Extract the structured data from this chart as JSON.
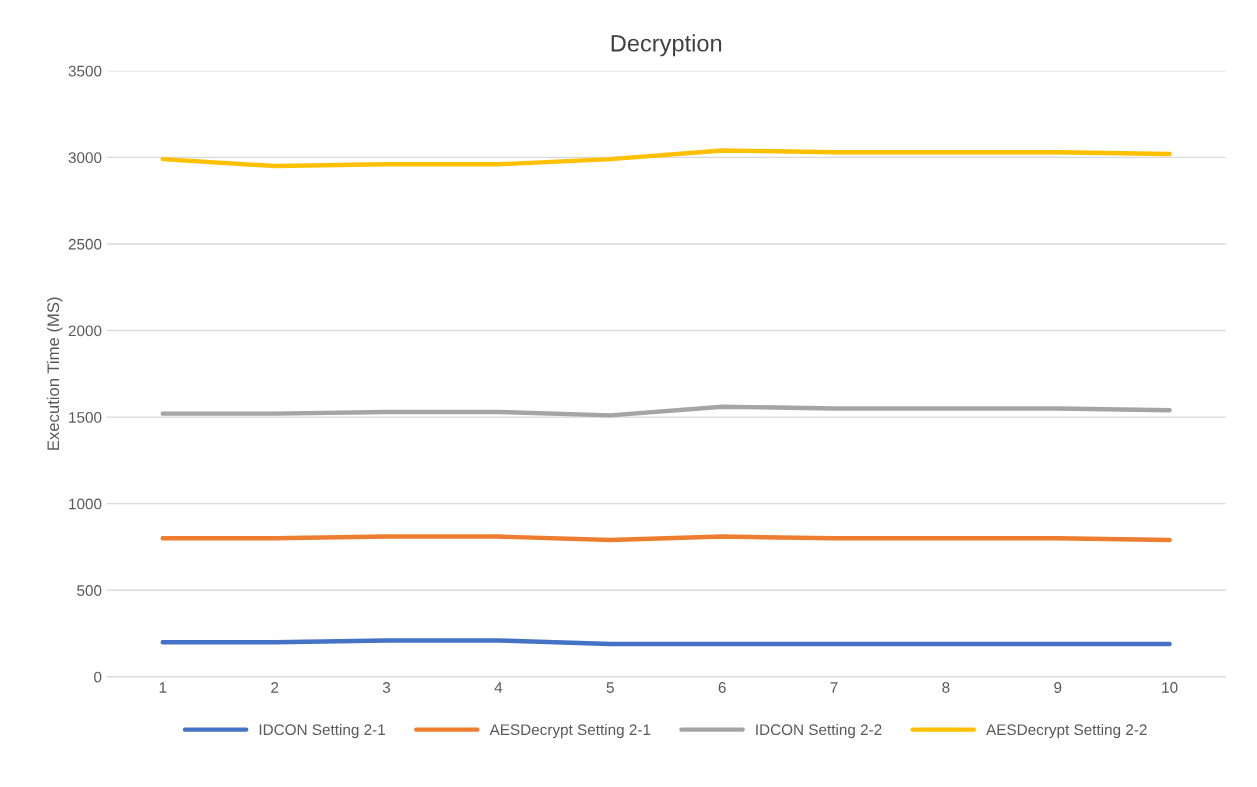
{
  "chart_data": {
    "type": "line",
    "title": "Decryption",
    "ylabel": "Execution Time (MS)",
    "categories": [
      "1",
      "2",
      "3",
      "4",
      "5",
      "6",
      "7",
      "8",
      "9",
      "10"
    ],
    "series": [
      {
        "name": "IDCON Setting 2-1",
        "color": "#4472c4",
        "values": [
          200,
          200,
          210,
          210,
          190,
          190,
          190,
          190,
          190,
          190
        ]
      },
      {
        "name": "AESDecrypt Setting 2-1",
        "color": "#ed7d31",
        "values": [
          800,
          800,
          810,
          810,
          790,
          810,
          800,
          800,
          800,
          790
        ]
      },
      {
        "name": "IDCON Setting 2-2",
        "color": "#a5a5a5",
        "values": [
          1520,
          1520,
          1530,
          1530,
          1510,
          1560,
          1550,
          1550,
          1550,
          1540
        ]
      },
      {
        "name": "AESDecrypt Setting 2-2",
        "color": "#ffc000",
        "values": [
          2990,
          2950,
          2960,
          2960,
          2990,
          3040,
          3030,
          3030,
          3030,
          3020
        ]
      }
    ],
    "ylim": [
      0,
      3500
    ],
    "yticks": [
      0,
      500,
      1000,
      1500,
      2000,
      2500,
      3000,
      3500
    ],
    "grid": "y",
    "legend": "bottom",
    "marker": "none",
    "line_style": "solid"
  }
}
